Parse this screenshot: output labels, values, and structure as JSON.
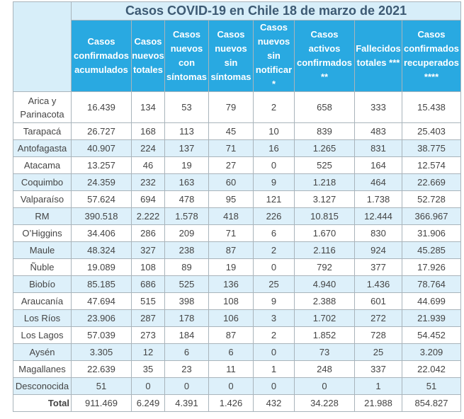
{
  "table": {
    "title": "Casos COVID-19 en Chile 18 de marzo de 2021",
    "headers": [
      "Casos confirmados acumulados",
      "Casos nuevos totales",
      "Casos nuevos con síntomas",
      "Casos nuevos sin síntomas",
      "Casos nuevos sin notificar *",
      "Casos activos confirmados **",
      "Fallecidos totales ***",
      "Casos confirmados recuperados ****"
    ],
    "rows": [
      [
        "Arica y Parinacota",
        "16.439",
        "134",
        "53",
        "79",
        "2",
        "658",
        "333",
        "15.438"
      ],
      [
        "Tarapacá",
        "26.727",
        "168",
        "113",
        "45",
        "10",
        "839",
        "483",
        "25.403"
      ],
      [
        "Antofagasta",
        "40.907",
        "224",
        "137",
        "71",
        "16",
        "1.265",
        "831",
        "38.775"
      ],
      [
        "Atacama",
        "13.257",
        "46",
        "19",
        "27",
        "0",
        "525",
        "164",
        "12.574"
      ],
      [
        "Coquimbo",
        "24.359",
        "232",
        "163",
        "60",
        "9",
        "1.218",
        "464",
        "22.669"
      ],
      [
        "Valparaíso",
        "57.624",
        "694",
        "478",
        "95",
        "121",
        "3.127",
        "1.738",
        "52.728"
      ],
      [
        "RM",
        "390.518",
        "2.222",
        "1.578",
        "418",
        "226",
        "10.815",
        "12.444",
        "366.967"
      ],
      [
        "O’Higgins",
        "34.406",
        "286",
        "209",
        "71",
        "6",
        "1.670",
        "830",
        "31.906"
      ],
      [
        "Maule",
        "48.324",
        "327",
        "238",
        "87",
        "2",
        "2.116",
        "924",
        "45.285"
      ],
      [
        "Ñuble",
        "19.089",
        "108",
        "89",
        "19",
        "0",
        "792",
        "377",
        "17.926"
      ],
      [
        "Biobío",
        "85.185",
        "686",
        "525",
        "136",
        "25",
        "4.940",
        "1.436",
        "78.764"
      ],
      [
        "Araucanía",
        "47.694",
        "515",
        "398",
        "108",
        "9",
        "2.388",
        "601",
        "44.699"
      ],
      [
        "Los Ríos",
        "23.906",
        "287",
        "178",
        "106",
        "3",
        "1.702",
        "272",
        "21.939"
      ],
      [
        "Los Lagos",
        "57.039",
        "273",
        "184",
        "87",
        "2",
        "1.852",
        "728",
        "54.452"
      ],
      [
        "Aysén",
        "3.305",
        "12",
        "6",
        "6",
        "0",
        "73",
        "25",
        "3.209"
      ],
      [
        "Magallanes",
        "22.639",
        "35",
        "23",
        "11",
        "1",
        "248",
        "337",
        "22.042"
      ],
      [
        "Desconocida",
        "51",
        "0",
        "0",
        "0",
        "0",
        "0",
        "1",
        "51"
      ]
    ],
    "total": [
      "Total",
      "911.469",
      "6.249",
      "4.391",
      "1.426",
      "432",
      "34.228",
      "21.988",
      "854.827"
    ]
  }
}
